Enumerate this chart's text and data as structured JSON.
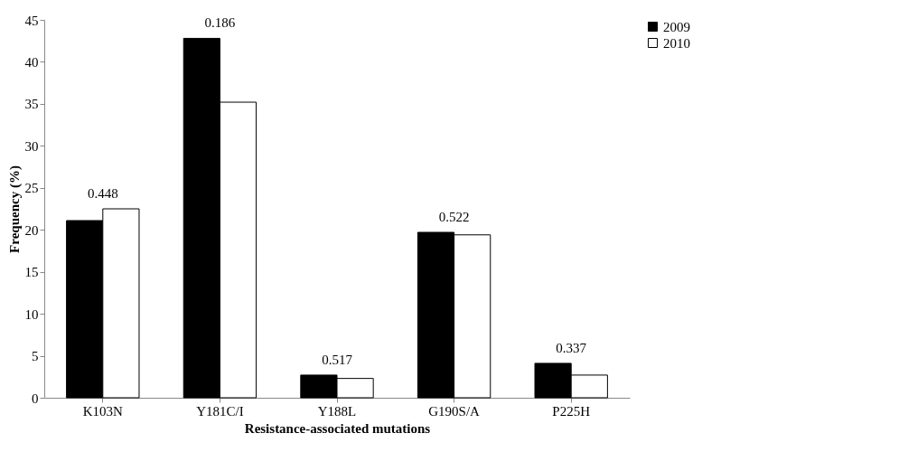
{
  "chart_data": {
    "type": "bar",
    "xlabel": "Resistance-associated mutations",
    "ylabel": "Frequency (%)",
    "categories": [
      "K103N",
      "Y181C/I",
      "Y188L",
      "G190S/A",
      "P225H"
    ],
    "series": [
      {
        "name": "2009",
        "color": "#000000",
        "values": [
          21.1,
          42.8,
          2.7,
          19.7,
          4.1
        ]
      },
      {
        "name": "2010",
        "color": "#ffffff",
        "values": [
          22.5,
          35.2,
          2.3,
          19.4,
          2.7
        ]
      }
    ],
    "ylim": [
      0,
      45
    ],
    "yticks": [
      0,
      5,
      10,
      15,
      20,
      25,
      30,
      35,
      40,
      45
    ],
    "grid": false,
    "legend": "right",
    "annotations": [
      {
        "text": "0.448",
        "x": "K103N",
        "y": 22.5
      },
      {
        "text": "0.186",
        "x": "Y181C/I",
        "y": 42.8
      },
      {
        "text": "0.517",
        "x": "Y188L",
        "y": 2.7
      },
      {
        "text": "0.522",
        "x": "G190S/A",
        "y": 19.7
      },
      {
        "text": "0.337",
        "x": "P225H",
        "y": 4.1
      }
    ]
  }
}
